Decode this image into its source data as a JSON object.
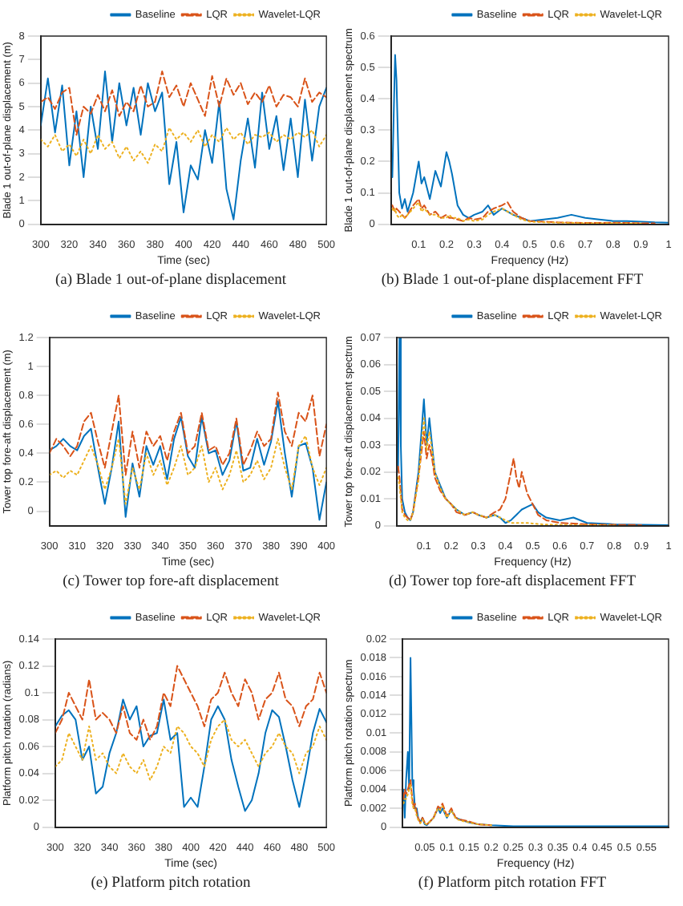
{
  "chart_data": [
    {
      "type": "line",
      "title": "(a) Blade 1 out-of-plane displacement",
      "xlabel": "Time (sec)",
      "ylabel": "Blade 1 out-of-plane displacement (m)",
      "xlim": [
        300,
        500
      ],
      "xticks": [
        300,
        320,
        340,
        360,
        380,
        400,
        420,
        440,
        460,
        480,
        500
      ],
      "ylim": [
        0,
        8
      ],
      "yticks": [
        0,
        1,
        2,
        3,
        4,
        5,
        6,
        7,
        8
      ],
      "grid": false,
      "legend": "top right",
      "marker": "none",
      "x": [
        300,
        305,
        310,
        315,
        320,
        325,
        330,
        335,
        340,
        345,
        350,
        355,
        360,
        365,
        370,
        375,
        380,
        385,
        390,
        395,
        400,
        405,
        410,
        415,
        420,
        425,
        430,
        435,
        440,
        445,
        450,
        455,
        460,
        465,
        470,
        475,
        480,
        485,
        490,
        495,
        500
      ],
      "series": [
        {
          "name": "Baseline",
          "color": "#0072bd",
          "line_style": "solid",
          "values": [
            4.2,
            6.2,
            3.9,
            5.9,
            2.5,
            4.8,
            2.0,
            5.0,
            3.2,
            6.5,
            3.5,
            6.0,
            4.2,
            5.8,
            3.8,
            6.0,
            4.8,
            5.6,
            1.7,
            3.5,
            0.5,
            2.5,
            1.9,
            4.0,
            2.6,
            5.2,
            1.5,
            0.2,
            2.7,
            4.5,
            2.4,
            5.6,
            3.2,
            4.6,
            2.3,
            4.5,
            2.0,
            5.3,
            2.7,
            5.0,
            5.8
          ]
        },
        {
          "name": "LQR",
          "color": "#d95319",
          "line_style": "dashed",
          "values": [
            5.2,
            5.4,
            4.9,
            5.6,
            5.8,
            3.8,
            5.0,
            4.7,
            5.5,
            4.8,
            5.7,
            4.6,
            5.2,
            4.8,
            5.9,
            5.0,
            5.2,
            6.5,
            5.4,
            5.9,
            5.0,
            6.0,
            5.3,
            4.6,
            6.3,
            5.0,
            6.2,
            5.5,
            6.0,
            5.1,
            5.6,
            5.2,
            5.9,
            5.0,
            5.5,
            5.4,
            5.0,
            6.2,
            5.2,
            5.6,
            5.4
          ]
        },
        {
          "name": "Wavelet-LQR",
          "color": "#edb120",
          "line_style": "dotted",
          "values": [
            3.6,
            3.3,
            3.8,
            3.1,
            3.4,
            2.9,
            3.6,
            3.0,
            3.8,
            3.2,
            3.5,
            2.8,
            3.3,
            2.7,
            3.1,
            2.6,
            3.4,
            3.1,
            4.1,
            3.6,
            3.9,
            3.5,
            4.0,
            3.3,
            3.8,
            3.5,
            4.1,
            3.6,
            3.9,
            3.4,
            3.8,
            3.7,
            3.9,
            3.5,
            3.8,
            3.6,
            3.9,
            3.7,
            4.0,
            3.3,
            3.8
          ]
        }
      ]
    },
    {
      "type": "line",
      "title": "(b) Blade 1 out-of-plane displacement FFT",
      "xlabel": "Frequency (Hz)",
      "ylabel": "Blade 1 out-of-plane displacement spectrum",
      "xlim": [
        0,
        1
      ],
      "xticks": [
        0.1,
        0.2,
        0.3,
        0.4,
        0.5,
        0.6,
        0.7,
        0.8,
        0.9,
        1
      ],
      "ylim": [
        0,
        0.6
      ],
      "yticks": [
        0,
        0.1,
        0.2,
        0.3,
        0.4,
        0.5,
        0.6
      ],
      "grid": false,
      "legend": "top right",
      "marker": "none",
      "x": [
        0.005,
        0.01,
        0.015,
        0.02,
        0.03,
        0.04,
        0.05,
        0.06,
        0.08,
        0.1,
        0.11,
        0.12,
        0.14,
        0.16,
        0.18,
        0.2,
        0.21,
        0.22,
        0.24,
        0.26,
        0.28,
        0.3,
        0.33,
        0.35,
        0.37,
        0.4,
        0.42,
        0.44,
        0.47,
        0.5,
        0.55,
        0.6,
        0.65,
        0.7,
        0.75,
        0.8,
        0.85,
        0.9,
        0.95,
        1
      ],
      "series": [
        {
          "name": "Baseline",
          "color": "#0072bd",
          "line_style": "solid",
          "values": [
            0.15,
            0.35,
            0.54,
            0.46,
            0.1,
            0.05,
            0.08,
            0.04,
            0.1,
            0.2,
            0.13,
            0.15,
            0.08,
            0.17,
            0.12,
            0.23,
            0.2,
            0.16,
            0.06,
            0.03,
            0.02,
            0.03,
            0.04,
            0.06,
            0.03,
            0.05,
            0.04,
            0.03,
            0.02,
            0.01,
            0.015,
            0.02,
            0.03,
            0.02,
            0.015,
            0.01,
            0.01,
            0.008,
            0.006,
            0.005
          ]
        },
        {
          "name": "LQR",
          "color": "#d95319",
          "line_style": "dashed",
          "values": [
            0.06,
            0.05,
            0.04,
            0.05,
            0.04,
            0.03,
            0.02,
            0.03,
            0.06,
            0.08,
            0.05,
            0.06,
            0.03,
            0.04,
            0.02,
            0.03,
            0.02,
            0.02,
            0.015,
            0.01,
            0.02,
            0.015,
            0.02,
            0.04,
            0.05,
            0.06,
            0.07,
            0.04,
            0.02,
            0.01,
            0.008,
            0.006,
            0.005,
            0.004,
            0.004,
            0.005,
            0.004,
            0.003,
            0.003,
            null
          ]
        },
        {
          "name": "Wavelet-LQR",
          "color": "#edb120",
          "line_style": "dotted",
          "values": [
            0.05,
            0.04,
            0.05,
            0.03,
            0.02,
            0.03,
            0.02,
            0.03,
            0.05,
            0.07,
            0.04,
            0.05,
            0.03,
            0.03,
            0.02,
            0.02,
            0.03,
            0.02,
            0.02,
            0.01,
            0.015,
            0.01,
            0.015,
            0.03,
            0.04,
            0.05,
            0.04,
            0.03,
            0.015,
            0.008,
            0.006,
            0.005,
            0.004,
            0.003,
            0.003,
            0.003,
            0.002,
            0.002,
            null,
            null
          ]
        }
      ]
    },
    {
      "type": "line",
      "title": "(c) Tower top fore-aft displacement",
      "xlabel": "Time (sec)",
      "ylabel": "Tower top fore-aft displacement (m)",
      "xlim": [
        300,
        400
      ],
      "xticks": [
        300,
        310,
        320,
        330,
        340,
        350,
        360,
        370,
        380,
        390,
        400
      ],
      "ylim": [
        -0.1,
        1.2
      ],
      "yticks": [
        0,
        0.2,
        0.4,
        0.6,
        0.8,
        1,
        1.2
      ],
      "grid": false,
      "legend": "top right",
      "marker": "none",
      "x": [
        300,
        302.5,
        305,
        307.5,
        310,
        312.5,
        315,
        317.5,
        320,
        322.5,
        325,
        327.5,
        330,
        332.5,
        335,
        337.5,
        340,
        342.5,
        345,
        347.5,
        350,
        352.5,
        355,
        357.5,
        360,
        362.5,
        365,
        367.5,
        370,
        372.5,
        375,
        377.5,
        380,
        382.5,
        385,
        387.5,
        390,
        392.5,
        395,
        397.5,
        400
      ],
      "series": [
        {
          "name": "Baseline",
          "color": "#0072bd",
          "line_style": "solid",
          "values": [
            0.42,
            0.45,
            0.5,
            0.45,
            0.42,
            0.52,
            0.57,
            0.3,
            0.05,
            0.3,
            0.62,
            -0.04,
            0.33,
            0.1,
            0.45,
            0.32,
            0.45,
            0.22,
            0.5,
            0.65,
            0.38,
            0.3,
            0.65,
            0.4,
            0.42,
            0.25,
            0.35,
            0.62,
            0.28,
            0.3,
            0.5,
            0.32,
            0.48,
            0.76,
            0.4,
            0.1,
            0.45,
            0.47,
            0.3,
            -0.06,
            0.2
          ]
        },
        {
          "name": "LQR",
          "color": "#d95319",
          "line_style": "dashed",
          "values": [
            0.4,
            0.5,
            0.45,
            0.38,
            0.45,
            0.62,
            0.68,
            0.48,
            0.3,
            0.55,
            0.8,
            0.25,
            0.55,
            0.3,
            0.55,
            0.45,
            0.52,
            0.35,
            0.55,
            0.68,
            0.4,
            0.45,
            0.68,
            0.42,
            0.45,
            0.32,
            0.4,
            0.64,
            0.32,
            0.42,
            0.55,
            0.45,
            0.5,
            0.82,
            0.55,
            0.45,
            0.68,
            0.62,
            0.8,
            0.38,
            0.6
          ]
        },
        {
          "name": "Wavelet-LQR",
          "color": "#edb120",
          "line_style": "dotted",
          "values": [
            0.25,
            0.28,
            0.23,
            0.28,
            0.25,
            0.35,
            0.45,
            0.32,
            0.15,
            0.3,
            0.5,
            0.05,
            0.3,
            0.15,
            0.4,
            0.25,
            0.35,
            0.18,
            0.3,
            0.45,
            0.25,
            0.3,
            0.45,
            0.2,
            0.3,
            0.15,
            0.25,
            0.42,
            0.2,
            0.25,
            0.35,
            0.22,
            0.3,
            0.5,
            0.3,
            0.15,
            0.45,
            0.52,
            0.3,
            0.18,
            0.3
          ]
        }
      ]
    },
    {
      "type": "line",
      "title": "(d) Tower top fore-aft displacement FFT",
      "xlabel": "Frequency (Hz)",
      "ylabel": "Tower top fore-aft displacement spectrum",
      "xlim": [
        0,
        1
      ],
      "xticks": [
        0.1,
        0.2,
        0.3,
        0.4,
        0.5,
        0.6,
        0.7,
        0.8,
        0.9,
        1
      ],
      "ylim": [
        0,
        0.07
      ],
      "yticks": [
        0,
        0.01,
        0.02,
        0.03,
        0.04,
        0.05,
        0.06,
        0.07
      ],
      "grid": false,
      "legend": "top right",
      "marker": "none",
      "x": [
        0.005,
        0.01,
        0.015,
        0.02,
        0.03,
        0.04,
        0.05,
        0.06,
        0.08,
        0.1,
        0.11,
        0.12,
        0.13,
        0.14,
        0.16,
        0.18,
        0.2,
        0.22,
        0.25,
        0.28,
        0.3,
        0.33,
        0.36,
        0.38,
        0.4,
        0.42,
        0.43,
        0.44,
        0.45,
        0.46,
        0.48,
        0.5,
        0.52,
        0.55,
        0.6,
        0.65,
        0.7,
        0.8,
        0.9,
        1
      ],
      "series": [
        {
          "name": "Baseline",
          "color": "#0072bd",
          "line_style": "solid",
          "values": [
            0.02,
            0.07,
            0.03,
            0.01,
            0.005,
            0.003,
            0.002,
            0.005,
            0.02,
            0.047,
            0.03,
            0.04,
            0.03,
            0.02,
            0.015,
            0.01,
            0.008,
            0.006,
            0.004,
            0.005,
            0.004,
            0.003,
            0.004,
            0.003,
            0.001,
            0.002,
            0.003,
            0.004,
            0.005,
            0.006,
            0.007,
            0.008,
            0.005,
            0.003,
            0.002,
            0.003,
            0.001,
            0.0005,
            0.0003,
            0.0002
          ]
        },
        {
          "name": "LQR",
          "color": "#d95319",
          "line_style": "dashed",
          "values": [
            0.022,
            0.018,
            0.012,
            0.006,
            0.004,
            0.003,
            0.002,
            0.005,
            0.018,
            0.035,
            0.025,
            0.03,
            0.025,
            0.018,
            0.013,
            0.01,
            0.008,
            0.005,
            0.004,
            0.005,
            0.004,
            0.003,
            0.005,
            0.006,
            0.01,
            0.02,
            0.025,
            0.018,
            0.014,
            0.02,
            0.012,
            0.008,
            0.004,
            0.002,
            0.001,
            0.0008,
            0.0005,
            0.0003,
            0.0002,
            null
          ]
        },
        {
          "name": "Wavelet-LQR",
          "color": "#edb120",
          "line_style": "dotted",
          "values": [
            0.018,
            0.015,
            0.01,
            0.005,
            0.003,
            0.002,
            0.002,
            0.005,
            0.017,
            0.04,
            0.028,
            0.035,
            0.028,
            0.02,
            0.014,
            0.01,
            0.008,
            0.006,
            0.004,
            0.005,
            0.004,
            0.003,
            0.004,
            0.003,
            0.002,
            0.001,
            0.001,
            0.001,
            0.001,
            0.001,
            0.001,
            0.0008,
            0.0006,
            0.0004,
            0.0003,
            0.0002,
            0.0002,
            0.0001,
            null,
            null
          ]
        }
      ]
    },
    {
      "type": "line",
      "title": "(e) Platform pitch rotation",
      "xlabel": "Time (sec)",
      "ylabel": "Platform pitch rotation (radians)",
      "xlim": [
        300,
        500
      ],
      "xticks": [
        300,
        320,
        340,
        360,
        380,
        400,
        420,
        440,
        460,
        480,
        500
      ],
      "ylim": [
        0,
        0.14
      ],
      "yticks": [
        0,
        0.02,
        0.04,
        0.06,
        0.08,
        0.1,
        0.12,
        0.14
      ],
      "grid": false,
      "legend": "top right",
      "marker": "none",
      "x": [
        300,
        305,
        310,
        315,
        320,
        325,
        330,
        335,
        340,
        345,
        350,
        355,
        360,
        365,
        370,
        375,
        380,
        385,
        390,
        395,
        400,
        405,
        410,
        415,
        420,
        425,
        430,
        435,
        440,
        445,
        450,
        455,
        460,
        465,
        470,
        475,
        480,
        485,
        490,
        495,
        500
      ],
      "series": [
        {
          "name": "Baseline",
          "color": "#0072bd",
          "line_style": "solid",
          "values": [
            0.075,
            0.083,
            0.087,
            0.08,
            0.05,
            0.06,
            0.025,
            0.03,
            0.055,
            0.07,
            0.095,
            0.08,
            0.09,
            0.06,
            0.068,
            0.07,
            0.095,
            0.065,
            0.07,
            0.015,
            0.022,
            0.015,
            0.045,
            0.08,
            0.09,
            0.08,
            0.05,
            0.03,
            0.012,
            0.02,
            0.04,
            0.07,
            0.087,
            0.082,
            0.06,
            0.035,
            0.015,
            0.04,
            0.07,
            0.088,
            0.078
          ]
        },
        {
          "name": "LQR",
          "color": "#d95319",
          "line_style": "dashed",
          "values": [
            0.07,
            0.08,
            0.1,
            0.09,
            0.08,
            0.11,
            0.08,
            0.085,
            0.08,
            0.07,
            0.09,
            0.07,
            0.065,
            0.08,
            0.065,
            0.075,
            0.1,
            0.09,
            0.12,
            0.11,
            0.1,
            0.09,
            0.075,
            0.095,
            0.1,
            0.115,
            0.1,
            0.09,
            0.11,
            0.1,
            0.08,
            0.095,
            0.1,
            0.115,
            0.095,
            0.09,
            0.075,
            0.09,
            0.095,
            0.115,
            0.1
          ]
        },
        {
          "name": "Wavelet-LQR",
          "color": "#edb120",
          "line_style": "dotted",
          "values": [
            0.045,
            0.05,
            0.07,
            0.06,
            0.05,
            0.075,
            0.05,
            0.055,
            0.045,
            0.04,
            0.055,
            0.045,
            0.04,
            0.05,
            0.035,
            0.045,
            0.06,
            0.055,
            0.075,
            0.07,
            0.06,
            0.055,
            0.045,
            0.065,
            0.075,
            0.08,
            0.065,
            0.06,
            0.065,
            0.055,
            0.045,
            0.055,
            0.06,
            0.07,
            0.06,
            0.055,
            0.04,
            0.055,
            0.06,
            0.075,
            0.065
          ]
        }
      ]
    },
    {
      "type": "line",
      "title": "(f) Platform pitch rotation FFT",
      "xlabel": "Frequency (Hz)",
      "ylabel": "Platform pitch rotation spectrum",
      "xlim": [
        0,
        0.6
      ],
      "xticks": [
        0.05,
        0.1,
        0.15,
        0.2,
        0.25,
        0.3,
        0.35,
        0.4,
        0.45,
        0.5,
        0.55
      ],
      "ylim": [
        0,
        0.02
      ],
      "yticks": [
        0,
        0.002,
        0.004,
        0.006,
        0.008,
        0.01,
        0.012,
        0.014,
        0.016,
        0.018,
        0.02
      ],
      "grid": false,
      "legend": "top right",
      "marker": "none",
      "x": [
        0.002,
        0.005,
        0.008,
        0.012,
        0.015,
        0.018,
        0.022,
        0.025,
        0.028,
        0.032,
        0.035,
        0.04,
        0.045,
        0.05,
        0.055,
        0.06,
        0.07,
        0.08,
        0.085,
        0.09,
        0.1,
        0.11,
        0.12,
        0.13,
        0.15,
        0.17,
        0.2,
        0.25,
        0.3,
        0.35,
        0.4,
        0.45,
        0.5,
        0.55,
        0.6
      ],
      "series": [
        {
          "name": "Baseline",
          "color": "#0072bd",
          "line_style": "solid",
          "values": [
            0.004,
            0.001,
            0.005,
            0.008,
            0.004,
            0.018,
            0.005,
            0.004,
            0.002,
            0.002,
            0.001,
            0.0005,
            0.001,
            0.0003,
            0.0002,
            0.0005,
            0.001,
            0.002,
            0.0015,
            0.002,
            0.001,
            0.0018,
            0.001,
            0.0008,
            0.0005,
            0.0003,
            0.0002,
            0.0001,
            0.0001,
            0.0001,
            0.0001,
            0.0001,
            0.0001,
            0.0001,
            0.0001
          ]
        },
        {
          "name": "LQR",
          "color": "#d95319",
          "line_style": "dashed",
          "values": [
            0.003,
            0.004,
            0.0035,
            0.004,
            0.0045,
            0.005,
            0.003,
            0.002,
            0.0025,
            0.0015,
            0.001,
            0.0005,
            0.001,
            0.0005,
            0.0003,
            0.0005,
            0.001,
            0.0022,
            0.002,
            0.0025,
            0.0012,
            0.002,
            0.001,
            0.0008,
            0.0006,
            0.0003,
            0.0002,
            null,
            null,
            null,
            null,
            null,
            null,
            null,
            null
          ]
        },
        {
          "name": "Wavelet-LQR",
          "color": "#edb120",
          "line_style": "dotted",
          "values": [
            0.0025,
            0.003,
            0.003,
            0.0035,
            0.004,
            0.0045,
            0.0025,
            0.002,
            0.002,
            0.0012,
            0.0008,
            0.0004,
            0.0008,
            0.0004,
            0.0003,
            0.0005,
            0.001,
            0.002,
            0.0018,
            0.0022,
            0.001,
            0.0018,
            0.0009,
            0.0007,
            0.0005,
            0.0003,
            0.0002,
            null,
            null,
            null,
            null,
            null,
            null,
            null,
            null
          ]
        }
      ]
    }
  ]
}
